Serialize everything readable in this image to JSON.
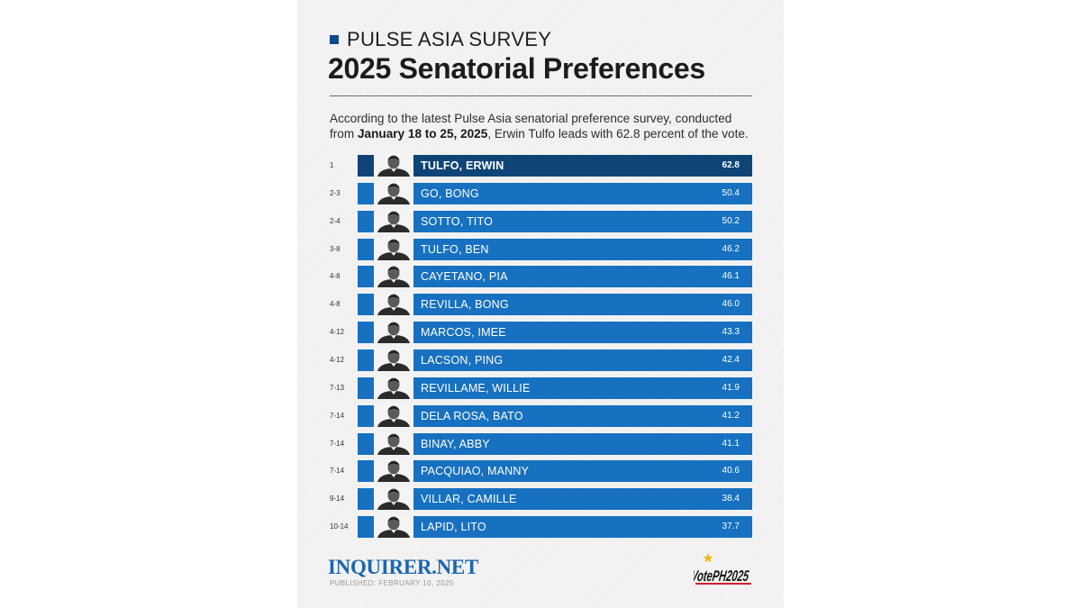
{
  "header": {
    "kicker": "PULSE ASIA SURVEY",
    "title": "2025 Senatorial Preferences",
    "intro_pre": "According to the latest Pulse Asia senatorial preference survey, conducted from ",
    "intro_bold": "January 18 to 25, 2025",
    "intro_post": ", Erwin Tulfo leads with 62.8 percent of the vote."
  },
  "chart_data": {
    "type": "bar",
    "orientation": "horizontal",
    "categories": [
      "TULFO, ERWIN",
      "GO, BONG",
      "SOTTO, TITO",
      "TULFO, BEN",
      "CAYETANO, PIA",
      "REVILLA, BONG",
      "MARCOS, IMEE",
      "LACSON, PING",
      "REVILLAME, WILLIE",
      "DELA ROSA, BATO",
      "BINAY, ABBY",
      "PACQUIAO, MANNY",
      "VILLAR, CAMILLE",
      "LAPID, LITO"
    ],
    "ranks": [
      "1",
      "2-3",
      "2-4",
      "3-8",
      "4-8",
      "4-8",
      "4-12",
      "4-12",
      "7-13",
      "7-14",
      "7-14",
      "7-14",
      "9-14",
      "10-14"
    ],
    "values": [
      "62.8",
      "50.4",
      "50.2",
      "46.2",
      "46.1",
      "46.0",
      "43.3",
      "42.4",
      "41.9",
      "41.2",
      "41.1",
      "40.6",
      "38.4",
      "37.7"
    ],
    "highlight_index": 0,
    "colors": {
      "highlight": "#0e4476",
      "bar": "#1771c0"
    },
    "legend": "none",
    "grid": false
  },
  "footer": {
    "brand": "INQUIRER.NET",
    "published": "PUBLISHED: FEBRUARY 10, 2025",
    "logo_icon": "votePH2025-logo",
    "logo_text": "VotePH2025"
  }
}
